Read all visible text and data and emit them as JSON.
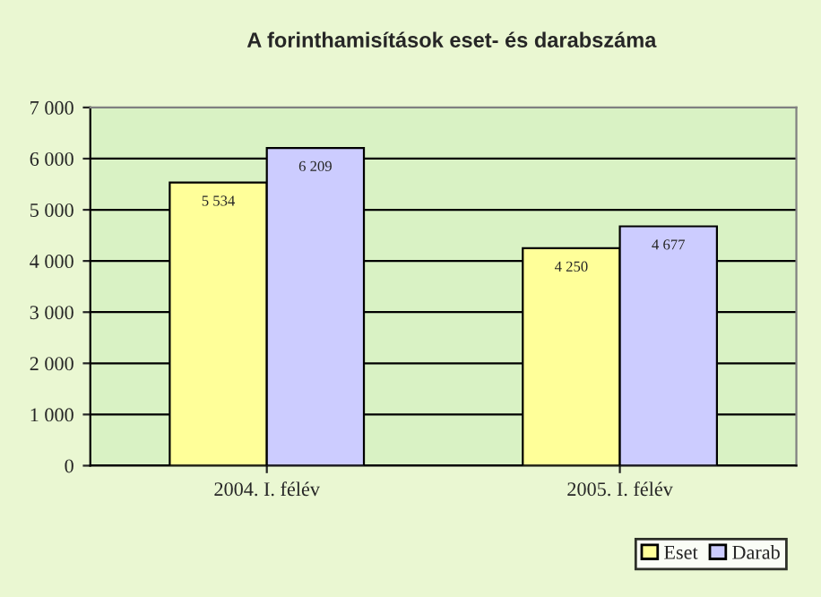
{
  "chart_data": {
    "type": "bar",
    "title": "A forinthamisítások eset- és darabszáma",
    "categories": [
      "2004. I. félév",
      "2005. I. félév"
    ],
    "series": [
      {
        "name": "Eset",
        "color": "#ffff99",
        "values": [
          5534,
          4250
        ],
        "value_labels": [
          "5 534",
          "4 250"
        ]
      },
      {
        "name": "Darab",
        "color": "#ccccff",
        "values": [
          6209,
          4677
        ],
        "value_labels": [
          "6 209",
          "4 677"
        ]
      }
    ],
    "ylim": [
      0,
      7000
    ],
    "yticks": [
      0,
      {
        "value": 1000,
        "label": "1 000"
      },
      {
        "value": 2000,
        "label": "2 000"
      },
      {
        "value": 3000,
        "label": "3 000"
      },
      {
        "value": 4000,
        "label": "4 000"
      },
      {
        "value": 5000,
        "label": "5 000"
      },
      {
        "value": 6000,
        "label": "6 000"
      },
      {
        "value": 7000,
        "label": "7 000"
      }
    ],
    "grid": "y",
    "legend": "bottom right"
  }
}
